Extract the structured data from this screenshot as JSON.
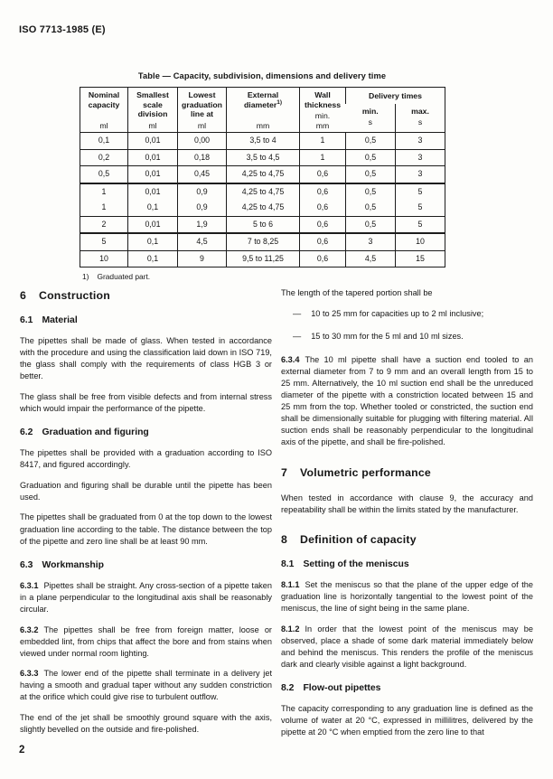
{
  "page": {
    "doc_ref": "ISO 7713-1985 (E)",
    "page_number": "2"
  },
  "table": {
    "title": "Table — Capacity, subdivision, dimensions and delivery time",
    "footnote_marker": "1)",
    "footnote_text": "Graduated part.",
    "header": {
      "col0": {
        "label": "Nominal capacity",
        "unit": "ml"
      },
      "col1": {
        "label": "Smallest scale division",
        "unit": "ml"
      },
      "col2": {
        "label": "Lowest graduation line at",
        "unit": "ml"
      },
      "col3": {
        "label": "External diameter",
        "sup": "1)",
        "unit": "mm"
      },
      "col4": {
        "label": "Wall thickness",
        "note": "min.",
        "unit": "mm"
      },
      "col5": {
        "label": "Delivery times",
        "sub": [
          {
            "label": "min.",
            "unit": "s"
          },
          {
            "label": "max.",
            "unit": "s"
          }
        ]
      }
    },
    "rows": [
      [
        "0,1",
        "0,01",
        "0,00",
        "3,5 to 4",
        "1",
        "0,5",
        "3"
      ],
      [
        "0,2",
        "0,01",
        "0,18",
        "3,5 to 4,5",
        "1",
        "0,5",
        "3"
      ],
      [
        "0,5",
        "0,01",
        "0,45",
        "4,25 to 4,75",
        "0,6",
        "0,5",
        "3"
      ],
      [
        "1",
        "0,01",
        "0,9",
        "4,25 to 4,75",
        "0,6",
        "0,5",
        "5"
      ],
      [
        "1",
        "0,1",
        "0,9",
        "4,25 to 4,75",
        "0,6",
        "0,5",
        "5"
      ],
      [
        "2",
        "0,01",
        "1,9",
        "5 to 6",
        "0,6",
        "0,5",
        "5"
      ],
      [
        "5",
        "0,1",
        "4,5",
        "7 to 8,25",
        "0,6",
        "3",
        "10"
      ],
      [
        "10",
        "0,1",
        "9",
        "9,5 to 11,25",
        "0,6",
        "4,5",
        "15"
      ]
    ]
  },
  "left_column": {
    "blocks": [
      {
        "style": "h1",
        "num": "6",
        "text": "Construction"
      },
      {
        "style": "h2",
        "num": "6.1",
        "text": "Material"
      },
      {
        "style": "p",
        "text": "The pipettes shall be made of glass. When tested in accordance with the procedure and using the classification laid down in ISO 719, the glass shall comply with the requirements of class HGB 3 or better."
      },
      {
        "style": "p",
        "text": "The glass shall be free from visible defects and from internal stress which would impair the performance of the pipette."
      },
      {
        "style": "h2",
        "num": "6.2",
        "text": "Graduation and figuring"
      },
      {
        "style": "p",
        "text": "The pipettes shall be provided with a graduation according to ISO 8417, and figured accordingly."
      },
      {
        "style": "p",
        "text": "Graduation and figuring shall be durable until the pipette has been used."
      },
      {
        "style": "p",
        "text": "The pipettes shall be graduated from 0 at the top down to the lowest graduation line according to the table. The distance between the top of the pipette and zero line shall be at least 90 mm."
      },
      {
        "style": "h2",
        "num": "6.3",
        "text": "Workmanship"
      },
      {
        "style": "p",
        "num": "6.3.1",
        "text": "Pipettes shall be straight. Any cross-section of a pipette taken in a plane perpendicular to the longitudinal axis shall be reasonably circular."
      },
      {
        "style": "p",
        "num": "6.3.2",
        "text": "The pipettes shall be free from foreign matter, loose or embedded lint, from chips that affect the bore and from stains when viewed under normal room lighting."
      },
      {
        "style": "p",
        "num": "6.3.3",
        "text": "The lower end of the pipette shall terminate in a delivery jet having a smooth and gradual taper without any sudden constriction at the orifice which could give rise to turbulent outflow."
      },
      {
        "style": "p",
        "text": "The end of the jet shall be smoothly ground square with the axis, slightly bevelled on the outside and fire-polished."
      }
    ]
  },
  "right_column": {
    "blocks": [
      {
        "style": "p",
        "text": "The length of the tapered portion shall be"
      },
      {
        "style": "li",
        "dash": "—",
        "text": "10 to 25 mm for capacities up to 2 ml inclusive;"
      },
      {
        "style": "li",
        "dash": "—",
        "text": "15 to 30 mm for the 5 ml and 10 ml sizes."
      },
      {
        "style": "p",
        "num": "6.3.4",
        "text": "The 10 ml pipette shall have a suction end tooled to an external diameter from 7 to 9 mm and an overall length from 15 to 25 mm. Alternatively, the 10 ml suction end shall be the unreduced diameter of the pipette with a constriction located between 15 and 25 mm from the top. Whether tooled or constricted, the suction end shall be dimensionally suitable for plugging with filtering material. All suction ends shall be reasonably perpendicular to the longitudinal axis of the pipette, and shall be fire-polished."
      },
      {
        "style": "h1",
        "num": "7",
        "text": "Volumetric performance"
      },
      {
        "style": "p",
        "text": "When tested in accordance with clause 9, the accuracy and repeatability shall be within the limits stated by the manufacturer."
      },
      {
        "style": "h1",
        "num": "8",
        "text": "Definition of capacity"
      },
      {
        "style": "h2",
        "num": "8.1",
        "text": "Setting of the meniscus"
      },
      {
        "style": "p",
        "num": "8.1.1",
        "text": "Set the meniscus so that the plane of the upper edge of the graduation line is horizontally tangential to the lowest point of the meniscus, the line of sight being in the same plane."
      },
      {
        "style": "p",
        "num": "8.1.2",
        "text": "In order that the lowest point of the meniscus may be observed, place a shade of some dark material immediately below and behind the meniscus. This renders the profile of the meniscus dark and clearly visible against a light background."
      },
      {
        "style": "h2",
        "num": "8.2",
        "text": "Flow-out pipettes"
      },
      {
        "style": "p",
        "text": "The capacity corresponding to any graduation line is defined as the volume of water at 20 °C, expressed in millilitres, delivered by the pipette at 20 °C when emptied from the zero line to that"
      }
    ]
  }
}
